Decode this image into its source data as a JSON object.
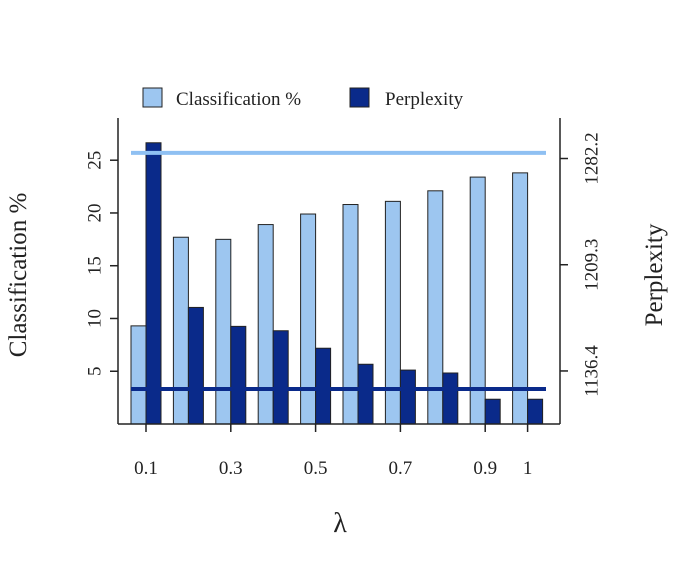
{
  "chart_data": {
    "type": "bar",
    "xlabel": "λ",
    "ylabel": "Classification %",
    "y2label": "Perplexity",
    "categories": [
      "0.1",
      "0.2",
      "0.3",
      "0.4",
      "0.5",
      "0.6",
      "0.7",
      "0.8",
      "0.9",
      "1"
    ],
    "x_tick_labels": [
      "0.1",
      "0.3",
      "0.5",
      "0.7",
      "0.9",
      "1"
    ],
    "x_tick_positions": [
      "0.1",
      "0.3",
      "0.5",
      "0.7",
      "0.9",
      "1"
    ],
    "series": [
      {
        "name": "Classification %",
        "axis": "left",
        "color": "#9DC6F0",
        "values": [
          9.3,
          17.7,
          17.5,
          18.9,
          19.9,
          20.8,
          21.1,
          22.1,
          23.4,
          23.8
        ]
      },
      {
        "name": "Perplexity",
        "axis": "right",
        "color": "#0A2A8A",
        "values": [
          1293,
          1180,
          1167,
          1164,
          1152,
          1141,
          1137,
          1135,
          1117,
          1117
        ]
      }
    ],
    "reference_lines": [
      {
        "axis": "left",
        "value": 25.7,
        "color": "#8FC0F2"
      },
      {
        "axis": "right",
        "value": 1124,
        "color": "#0A2A8A"
      }
    ],
    "left_axis": {
      "ticks": [
        5,
        10,
        15,
        20,
        25
      ],
      "range": [
        0,
        29
      ]
    },
    "right_axis": {
      "ticks": [
        1136.4,
        1209.3,
        1282.2
      ],
      "tick_labels": [
        "1136.4",
        "1209.3",
        "1282.2"
      ],
      "range": [
        1100,
        1310
      ]
    },
    "legend": {
      "placement": "top",
      "items": [
        "Classification %",
        "Perplexity"
      ]
    },
    "grid": false
  }
}
